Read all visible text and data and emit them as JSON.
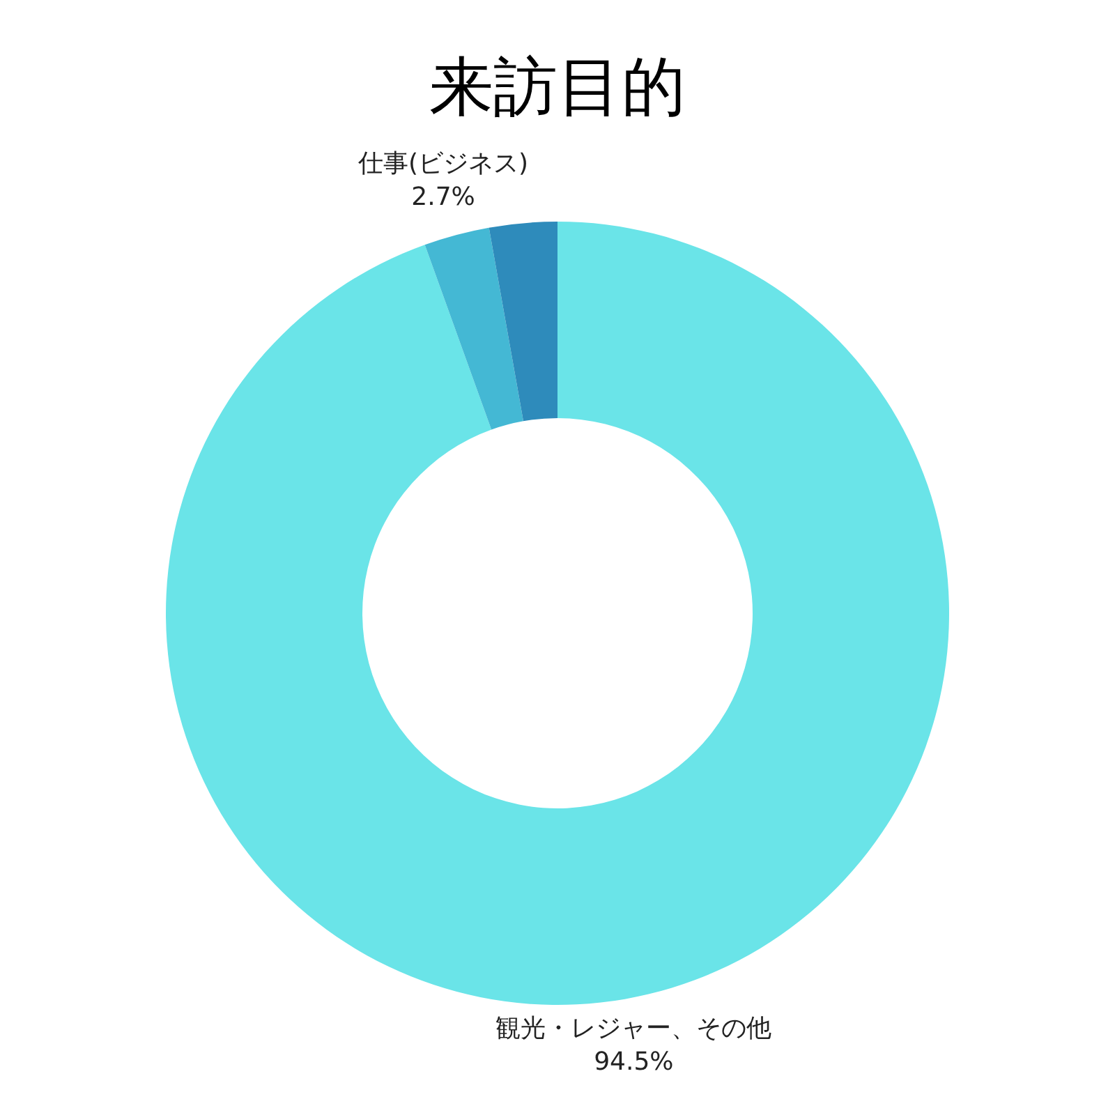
{
  "chart_data": {
    "type": "donut",
    "title": "来訪目的",
    "categories": [
      "観光・レジャー、その他",
      "仕事(ビジネス)",
      null
    ],
    "values": [
      94.5,
      2.7,
      2.8
    ],
    "colors": [
      "#6ae4e8",
      "#44b8d4",
      "#2e8bbb"
    ],
    "value_labels": [
      "94.5%",
      "2.7%",
      null
    ]
  }
}
